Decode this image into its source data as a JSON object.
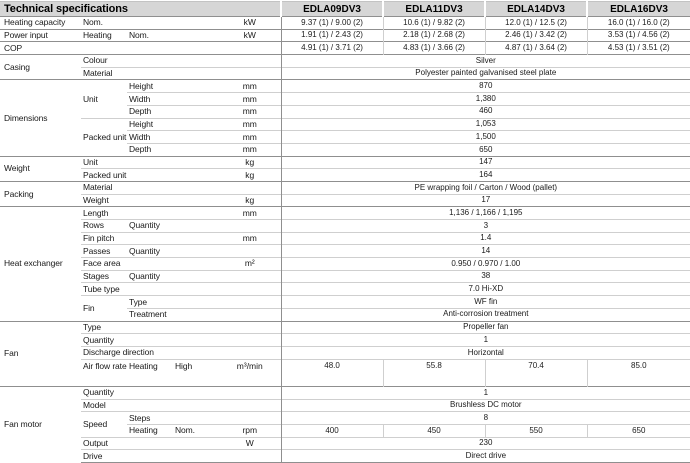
{
  "header": {
    "title": "Technical specifications",
    "models": [
      "EDLA09DV3",
      "EDLA11DV3",
      "EDLA14DV3",
      "EDLA16DV3"
    ]
  },
  "colors": {
    "header_bg": "#d6d6d6",
    "border_strong": "#8f8f8f",
    "border_light": "#cfcfcf",
    "text": "#1a1a1a"
  },
  "table": {
    "rows": [
      {
        "section_start": true,
        "cells": [
          {
            "text": "Heating capacity",
            "cat": true
          },
          {
            "text": "Nom.",
            "colspan": 3
          }
        ],
        "unit": "kW",
        "values": [
          "9.37 (1) / 9.00 (2)",
          "10.6 (1) / 9.82 (2)",
          "12.0 (1) / 12.5 (2)",
          "16.0 (1) / 16.0 (2)"
        ]
      },
      {
        "section_start": true,
        "cells": [
          {
            "text": "Power input",
            "cat": true
          },
          {
            "text": "Heating"
          },
          {
            "text": "Nom.",
            "colspan": 2
          }
        ],
        "unit": "kW",
        "values": [
          "1.91 (1) / 2.43 (2)",
          "2.18 (1) / 2.68 (2)",
          "2.46 (1) / 3.42 (2)",
          "3.53 (1) / 4.56 (2)"
        ]
      },
      {
        "section_start": true,
        "cells": [
          {
            "text": "COP",
            "cat": true
          },
          {
            "text": "",
            "colspan": 3
          }
        ],
        "unit": "",
        "values": [
          "4.91 (1) / 3.71 (2)",
          "4.83 (1) / 3.66 (2)",
          "4.87 (1) / 3.64 (2)",
          "4.53 (1) / 3.51 (2)"
        ]
      },
      {
        "section_start": true,
        "cells": [
          {
            "text": "Casing",
            "cat": true,
            "rowspan": 2
          },
          {
            "text": "Colour",
            "colspan": 3
          }
        ],
        "unit": "",
        "value": "Silver"
      },
      {
        "cells": [
          {
            "text": "Material",
            "colspan": 3
          }
        ],
        "unit": "",
        "value": "Polyester painted galvanised steel plate"
      },
      {
        "section_start": true,
        "cells": [
          {
            "text": "Dimensions",
            "cat": true,
            "rowspan": 6
          },
          {
            "text": "Unit",
            "rowspan": 3
          },
          {
            "text": "Height",
            "colspan": 2
          }
        ],
        "unit": "mm",
        "value": "870"
      },
      {
        "cells": [
          {
            "text": "Width",
            "colspan": 2
          }
        ],
        "unit": "mm",
        "value": "1,380"
      },
      {
        "cells": [
          {
            "text": "Depth",
            "colspan": 2
          }
        ],
        "unit": "mm",
        "value": "460"
      },
      {
        "cells": [
          {
            "text": "Packed unit",
            "rowspan": 3
          },
          {
            "text": "Height",
            "colspan": 2
          }
        ],
        "unit": "mm",
        "value": "1,053"
      },
      {
        "cells": [
          {
            "text": "Width",
            "colspan": 2
          }
        ],
        "unit": "mm",
        "value": "1,500"
      },
      {
        "cells": [
          {
            "text": "Depth",
            "colspan": 2
          }
        ],
        "unit": "mm",
        "value": "650"
      },
      {
        "section_start": true,
        "cells": [
          {
            "text": "Weight",
            "cat": true,
            "rowspan": 2
          },
          {
            "text": "Unit",
            "colspan": 3
          }
        ],
        "unit": "kg",
        "value": "147"
      },
      {
        "cells": [
          {
            "text": "Packed unit",
            "colspan": 3
          }
        ],
        "unit": "kg",
        "value": "164"
      },
      {
        "section_start": true,
        "cells": [
          {
            "text": "Packing",
            "cat": true,
            "rowspan": 2
          },
          {
            "text": "Material",
            "colspan": 3
          }
        ],
        "unit": "",
        "value": "PE wrapping foil / Carton / Wood (pallet)"
      },
      {
        "cells": [
          {
            "text": "Weight",
            "colspan": 3
          }
        ],
        "unit": "kg",
        "value": "17"
      },
      {
        "section_start": true,
        "cells": [
          {
            "text": "Heat exchanger",
            "cat": true,
            "rowspan": 9
          },
          {
            "text": "Length",
            "colspan": 3
          }
        ],
        "unit": "mm",
        "value": "1,136 / 1,166 / 1,195"
      },
      {
        "cells": [
          {
            "text": "Rows"
          },
          {
            "text": "Quantity",
            "colspan": 2
          }
        ],
        "unit": "",
        "value": "3"
      },
      {
        "cells": [
          {
            "text": "Fin pitch",
            "colspan": 3
          }
        ],
        "unit": "mm",
        "value": "1.4"
      },
      {
        "cells": [
          {
            "text": "Passes"
          },
          {
            "text": "Quantity",
            "colspan": 2
          }
        ],
        "unit": "",
        "value": "14"
      },
      {
        "cells": [
          {
            "text": "Face area",
            "colspan": 3
          }
        ],
        "unit": "m²",
        "value": "0.950 / 0.970 / 1.00"
      },
      {
        "cells": [
          {
            "text": "Stages"
          },
          {
            "text": "Quantity",
            "colspan": 2
          }
        ],
        "unit": "",
        "value": "38"
      },
      {
        "cells": [
          {
            "text": "Tube type",
            "colspan": 3
          }
        ],
        "unit": "",
        "value": "7.0 Hi-XD"
      },
      {
        "cells": [
          {
            "text": "Fin",
            "rowspan": 2
          },
          {
            "text": "Type",
            "colspan": 2
          }
        ],
        "unit": "",
        "value": "WF fin"
      },
      {
        "cells": [
          {
            "text": "Treatment",
            "colspan": 2
          }
        ],
        "unit": "",
        "value": "Anti-corrosion treatment"
      },
      {
        "section_start": true,
        "cells": [
          {
            "text": "Fan",
            "cat": true,
            "rowspan": 4
          },
          {
            "text": "Type",
            "colspan": 3
          }
        ],
        "unit": "",
        "value": "Propeller fan"
      },
      {
        "cells": [
          {
            "text": "Quantity",
            "colspan": 3
          }
        ],
        "unit": "",
        "value": "1"
      },
      {
        "cells": [
          {
            "text": "Discharge direction",
            "colspan": 3
          }
        ],
        "unit": "",
        "value": "Horizontal"
      },
      {
        "tall": true,
        "cells": [
          {
            "text": "Air flow rate"
          },
          {
            "text": "Heating"
          },
          {
            "text": "High"
          }
        ],
        "unit": "m³/min",
        "values": [
          "48.0",
          "55.8",
          "70.4",
          "85.0"
        ]
      },
      {
        "section_start": true,
        "cells": [
          {
            "text": "Fan motor",
            "cat": true,
            "rowspan": 6
          },
          {
            "text": "Quantity",
            "colspan": 3
          }
        ],
        "unit": "",
        "value": "1"
      },
      {
        "cells": [
          {
            "text": "Model",
            "colspan": 3
          }
        ],
        "unit": "",
        "value": "Brushless DC motor"
      },
      {
        "cells": [
          {
            "text": "Speed",
            "rowspan": 2
          },
          {
            "text": "Steps",
            "colspan": 2
          }
        ],
        "unit": "",
        "value": "8"
      },
      {
        "cells": [
          {
            "text": "Heating"
          },
          {
            "text": "Nom."
          }
        ],
        "unit": "rpm",
        "values": [
          "400",
          "450",
          "550",
          "650"
        ]
      },
      {
        "cells": [
          {
            "text": "Output",
            "colspan": 3
          }
        ],
        "unit": "W",
        "value": "230"
      },
      {
        "cells": [
          {
            "text": "Drive",
            "colspan": 3
          }
        ],
        "unit": "",
        "value": "Direct drive"
      }
    ]
  }
}
